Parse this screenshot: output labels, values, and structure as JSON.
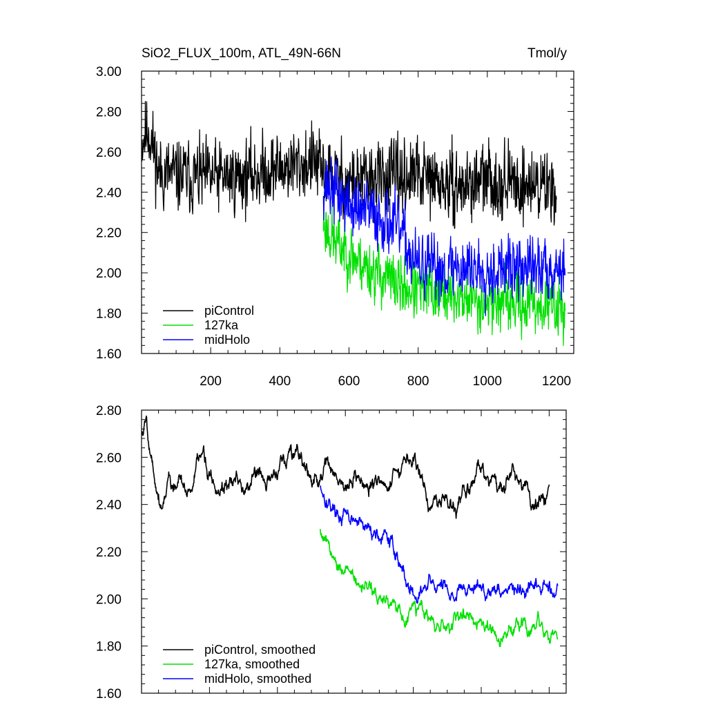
{
  "chart_data": [
    {
      "type": "line",
      "title": "SiO2_FLUX_100m, ATL_49N-66N",
      "units": "Tmol/y",
      "xlim": [
        0,
        1250
      ],
      "ylim": [
        1.6,
        3.0
      ],
      "xticks": [
        200,
        400,
        600,
        800,
        1000,
        1200
      ],
      "xtick_labels": [
        "200",
        "400",
        "600",
        "800",
        "1000",
        "1200"
      ],
      "yticks": [
        1.6,
        1.8,
        2.0,
        2.2,
        2.4,
        2.6,
        2.8,
        3.0
      ],
      "ytick_labels": [
        "1.60",
        "1.80",
        "2.00",
        "2.20",
        "2.40",
        "2.60",
        "2.80",
        "3.00"
      ],
      "legend_position": "bottom-left",
      "series": [
        {
          "name": "piControl",
          "color": "#000000",
          "x_start": 1,
          "x_end": 1200,
          "anchors": [
            [
              1,
              2.66
            ],
            [
              20,
              2.72
            ],
            [
              50,
              2.5
            ],
            [
              100,
              2.48
            ],
            [
              200,
              2.47
            ],
            [
              300,
              2.48
            ],
            [
              400,
              2.52
            ],
            [
              500,
              2.55
            ],
            [
              520,
              2.5
            ],
            [
              600,
              2.45
            ],
            [
              700,
              2.47
            ],
            [
              800,
              2.48
            ],
            [
              900,
              2.42
            ],
            [
              1000,
              2.46
            ],
            [
              1100,
              2.44
            ],
            [
              1200,
              2.43
            ]
          ],
          "noise": 0.085,
          "seed": 11
        },
        {
          "name": "127ka",
          "color": "#00e000",
          "x_start": 526,
          "x_end": 1225,
          "anchors": [
            [
              526,
              2.25
            ],
            [
              560,
              2.15
            ],
            [
              600,
              2.1
            ],
            [
              650,
              2.03
            ],
            [
              700,
              1.98
            ],
            [
              750,
              1.93
            ],
            [
              800,
              1.91
            ],
            [
              850,
              1.9
            ],
            [
              900,
              1.88
            ],
            [
              1000,
              1.86
            ],
            [
              1100,
              1.85
            ],
            [
              1225,
              1.83
            ]
          ],
          "noise": 0.07,
          "seed": 23
        },
        {
          "name": "midHolo",
          "color": "#0000ff",
          "x_start": 526,
          "x_end": 1225,
          "anchors": [
            [
              526,
              2.45
            ],
            [
              560,
              2.4
            ],
            [
              600,
              2.33
            ],
            [
              650,
              2.3
            ],
            [
              700,
              2.27
            ],
            [
              750,
              2.2
            ],
            [
              780,
              2.08
            ],
            [
              800,
              2.03
            ],
            [
              850,
              2.02
            ],
            [
              900,
              2.03
            ],
            [
              1000,
              2.02
            ],
            [
              1100,
              2.02
            ],
            [
              1225,
              2.03
            ]
          ],
          "noise": 0.075,
          "seed": 37
        }
      ]
    },
    {
      "type": "line",
      "title": "",
      "units": "",
      "xlim": [
        0,
        1250
      ],
      "ylim": [
        1.6,
        2.8
      ],
      "xticks": [
        200,
        400,
        600,
        800,
        1000,
        1200
      ],
      "xtick_labels": [],
      "yticks": [
        1.6,
        1.8,
        2.0,
        2.2,
        2.4,
        2.6,
        2.8
      ],
      "ytick_labels": [
        "1.60",
        "1.80",
        "2.00",
        "2.20",
        "2.40",
        "2.60",
        "2.80"
      ],
      "legend_position": "bottom-left",
      "series": [
        {
          "name": "piControl, smoothed",
          "color": "#000000",
          "x_start": 1,
          "x_end": 1200,
          "anchors": [
            [
              1,
              2.7
            ],
            [
              15,
              2.77
            ],
            [
              30,
              2.6
            ],
            [
              60,
              2.4
            ],
            [
              80,
              2.52
            ],
            [
              100,
              2.48
            ],
            [
              140,
              2.45
            ],
            [
              180,
              2.6
            ],
            [
              220,
              2.47
            ],
            [
              260,
              2.52
            ],
            [
              300,
              2.42
            ],
            [
              340,
              2.54
            ],
            [
              380,
              2.5
            ],
            [
              420,
              2.57
            ],
            [
              460,
              2.64
            ],
            [
              500,
              2.48
            ],
            [
              550,
              2.56
            ],
            [
              600,
              2.48
            ],
            [
              700,
              2.49
            ],
            [
              780,
              2.55
            ],
            [
              800,
              2.58
            ],
            [
              850,
              2.44
            ],
            [
              900,
              2.42
            ],
            [
              950,
              2.48
            ],
            [
              1000,
              2.52
            ],
            [
              1050,
              2.48
            ],
            [
              1100,
              2.53
            ],
            [
              1150,
              2.42
            ],
            [
              1200,
              2.44
            ]
          ],
          "noise": 0.04,
          "seed": 5
        },
        {
          "name": "127ka, smoothed",
          "color": "#00e000",
          "x_start": 526,
          "x_end": 1225,
          "anchors": [
            [
              526,
              2.3
            ],
            [
              560,
              2.2
            ],
            [
              600,
              2.14
            ],
            [
              650,
              2.06
            ],
            [
              700,
              2.0
            ],
            [
              750,
              1.95
            ],
            [
              780,
              1.89
            ],
            [
              800,
              1.96
            ],
            [
              850,
              1.93
            ],
            [
              900,
              1.88
            ],
            [
              950,
              1.92
            ],
            [
              1000,
              1.88
            ],
            [
              1050,
              1.86
            ],
            [
              1100,
              1.87
            ],
            [
              1150,
              1.88
            ],
            [
              1225,
              1.82
            ]
          ],
          "noise": 0.035,
          "seed": 9
        },
        {
          "name": "midHolo, smoothed",
          "color": "#0000ff",
          "x_start": 526,
          "x_end": 1225,
          "anchors": [
            [
              526,
              2.48
            ],
            [
              560,
              2.4
            ],
            [
              600,
              2.34
            ],
            [
              650,
              2.3
            ],
            [
              700,
              2.28
            ],
            [
              750,
              2.2
            ],
            [
              790,
              2.04
            ],
            [
              800,
              2.02
            ],
            [
              850,
              2.05
            ],
            [
              900,
              2.03
            ],
            [
              950,
              2.04
            ],
            [
              1000,
              2.04
            ],
            [
              1050,
              2.05
            ],
            [
              1100,
              2.03
            ],
            [
              1150,
              2.02
            ],
            [
              1225,
              2.06
            ]
          ],
          "noise": 0.035,
          "seed": 17
        }
      ]
    }
  ]
}
